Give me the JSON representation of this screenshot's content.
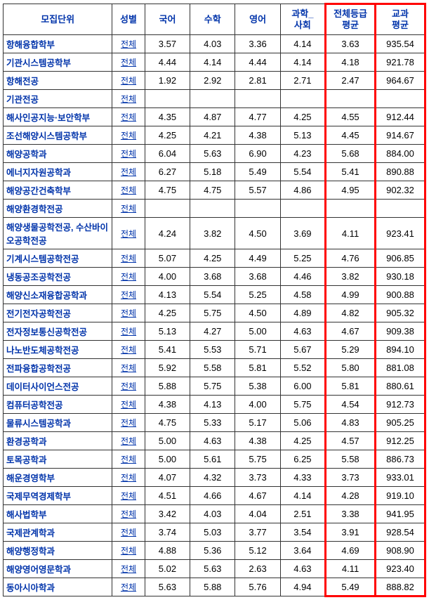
{
  "headers": {
    "dept": "모집단위",
    "gender": "성별",
    "korean": "국어",
    "math": "수학",
    "english": "영어",
    "sci_soc": "과학_\n사회",
    "grade_avg": "전체등급\n평균",
    "subj_avg": "교과\n평균"
  },
  "gender_label": "전체",
  "rows": [
    {
      "dept": "항해융합학부",
      "korean": "3.57",
      "math": "4.03",
      "english": "3.36",
      "sci_soc": "4.14",
      "grade_avg": "3.63",
      "subj_avg": "935.54"
    },
    {
      "dept": "기관시스템공학부",
      "korean": "4.44",
      "math": "4.14",
      "english": "4.44",
      "sci_soc": "4.14",
      "grade_avg": "4.18",
      "subj_avg": "921.78"
    },
    {
      "dept": "항해전공",
      "korean": "1.92",
      "math": "2.92",
      "english": "2.81",
      "sci_soc": "2.71",
      "grade_avg": "2.47",
      "subj_avg": "964.67"
    },
    {
      "dept": "기관전공",
      "korean": "",
      "math": "",
      "english": "",
      "sci_soc": "",
      "grade_avg": "",
      "subj_avg": ""
    },
    {
      "dept": "해사인공지능·보안학부",
      "korean": "4.35",
      "math": "4.87",
      "english": "4.77",
      "sci_soc": "4.25",
      "grade_avg": "4.55",
      "subj_avg": "912.44"
    },
    {
      "dept": "조선해양시스템공학부",
      "korean": "4.25",
      "math": "4.21",
      "english": "4.38",
      "sci_soc": "5.13",
      "grade_avg": "4.45",
      "subj_avg": "914.67"
    },
    {
      "dept": "해양공학과",
      "korean": "6.04",
      "math": "5.63",
      "english": "6.90",
      "sci_soc": "4.23",
      "grade_avg": "5.68",
      "subj_avg": "884.00"
    },
    {
      "dept": "에너지자원공학과",
      "korean": "6.27",
      "math": "5.18",
      "english": "5.49",
      "sci_soc": "5.54",
      "grade_avg": "5.41",
      "subj_avg": "890.88"
    },
    {
      "dept": "해양공간건축학부",
      "korean": "4.75",
      "math": "4.75",
      "english": "5.57",
      "sci_soc": "4.86",
      "grade_avg": "4.95",
      "subj_avg": "902.32"
    },
    {
      "dept": "해양환경학전공",
      "korean": "",
      "math": "",
      "english": "",
      "sci_soc": "",
      "grade_avg": "",
      "subj_avg": ""
    },
    {
      "dept": "해양생물공학전공, 수산바이오공학전공",
      "korean": "4.24",
      "math": "3.82",
      "english": "4.50",
      "sci_soc": "3.69",
      "grade_avg": "4.11",
      "subj_avg": "923.41"
    },
    {
      "dept": "기계시스템공학전공",
      "korean": "5.07",
      "math": "4.25",
      "english": "4.49",
      "sci_soc": "5.25",
      "grade_avg": "4.76",
      "subj_avg": "906.85"
    },
    {
      "dept": "냉동공조공학전공",
      "korean": "4.00",
      "math": "3.68",
      "english": "3.68",
      "sci_soc": "4.46",
      "grade_avg": "3.82",
      "subj_avg": "930.18"
    },
    {
      "dept": "해양신소재융합공학과",
      "korean": "4.13",
      "math": "5.54",
      "english": "5.25",
      "sci_soc": "4.58",
      "grade_avg": "4.99",
      "subj_avg": "900.88"
    },
    {
      "dept": "전기전자공학전공",
      "korean": "4.25",
      "math": "5.75",
      "english": "4.50",
      "sci_soc": "4.89",
      "grade_avg": "4.82",
      "subj_avg": "905.32"
    },
    {
      "dept": "전자정보통신공학전공",
      "korean": "5.13",
      "math": "4.27",
      "english": "5.00",
      "sci_soc": "4.63",
      "grade_avg": "4.67",
      "subj_avg": "909.38"
    },
    {
      "dept": "나노반도체공학전공",
      "korean": "5.41",
      "math": "5.53",
      "english": "5.71",
      "sci_soc": "5.67",
      "grade_avg": "5.29",
      "subj_avg": "894.10"
    },
    {
      "dept": "전파융합공학전공",
      "korean": "5.92",
      "math": "5.58",
      "english": "5.81",
      "sci_soc": "5.52",
      "grade_avg": "5.80",
      "subj_avg": "881.08"
    },
    {
      "dept": "데이터사이언스전공",
      "korean": "5.88",
      "math": "5.75",
      "english": "5.38",
      "sci_soc": "6.00",
      "grade_avg": "5.81",
      "subj_avg": "880.61"
    },
    {
      "dept": "컴퓨터공학전공",
      "korean": "4.38",
      "math": "4.13",
      "english": "4.00",
      "sci_soc": "5.75",
      "grade_avg": "4.54",
      "subj_avg": "912.73"
    },
    {
      "dept": "물류시스템공학과",
      "korean": "4.75",
      "math": "5.33",
      "english": "5.17",
      "sci_soc": "5.06",
      "grade_avg": "4.83",
      "subj_avg": "905.25"
    },
    {
      "dept": "환경공학과",
      "korean": "5.00",
      "math": "4.63",
      "english": "4.38",
      "sci_soc": "4.25",
      "grade_avg": "4.57",
      "subj_avg": "912.25"
    },
    {
      "dept": "토목공학과",
      "korean": "5.00",
      "math": "5.61",
      "english": "5.75",
      "sci_soc": "6.25",
      "grade_avg": "5.58",
      "subj_avg": "886.73"
    },
    {
      "dept": "해운경영학부",
      "korean": "4.07",
      "math": "4.32",
      "english": "3.73",
      "sci_soc": "4.33",
      "grade_avg": "3.73",
      "subj_avg": "933.01"
    },
    {
      "dept": "국제무역경제학부",
      "korean": "4.51",
      "math": "4.66",
      "english": "4.67",
      "sci_soc": "4.14",
      "grade_avg": "4.28",
      "subj_avg": "919.10"
    },
    {
      "dept": "해사법학부",
      "korean": "3.42",
      "math": "4.03",
      "english": "4.04",
      "sci_soc": "2.51",
      "grade_avg": "3.38",
      "subj_avg": "941.95"
    },
    {
      "dept": "국제관계학과",
      "korean": "3.74",
      "math": "5.03",
      "english": "3.77",
      "sci_soc": "3.54",
      "grade_avg": "3.91",
      "subj_avg": "928.54"
    },
    {
      "dept": "해양행정학과",
      "korean": "4.88",
      "math": "5.36",
      "english": "5.12",
      "sci_soc": "3.64",
      "grade_avg": "4.69",
      "subj_avg": "908.90"
    },
    {
      "dept": "해양영어영문학과",
      "korean": "5.02",
      "math": "5.63",
      "english": "2.63",
      "sci_soc": "4.63",
      "grade_avg": "4.11",
      "subj_avg": "923.40"
    },
    {
      "dept": "동아시아학과",
      "korean": "5.63",
      "math": "5.88",
      "english": "5.76",
      "sci_soc": "4.94",
      "grade_avg": "5.49",
      "subj_avg": "888.82"
    }
  ],
  "colors": {
    "header_text": "#0033aa",
    "border": "#333333",
    "highlight_border": "#ff0000",
    "link_text": "#0033aa"
  }
}
